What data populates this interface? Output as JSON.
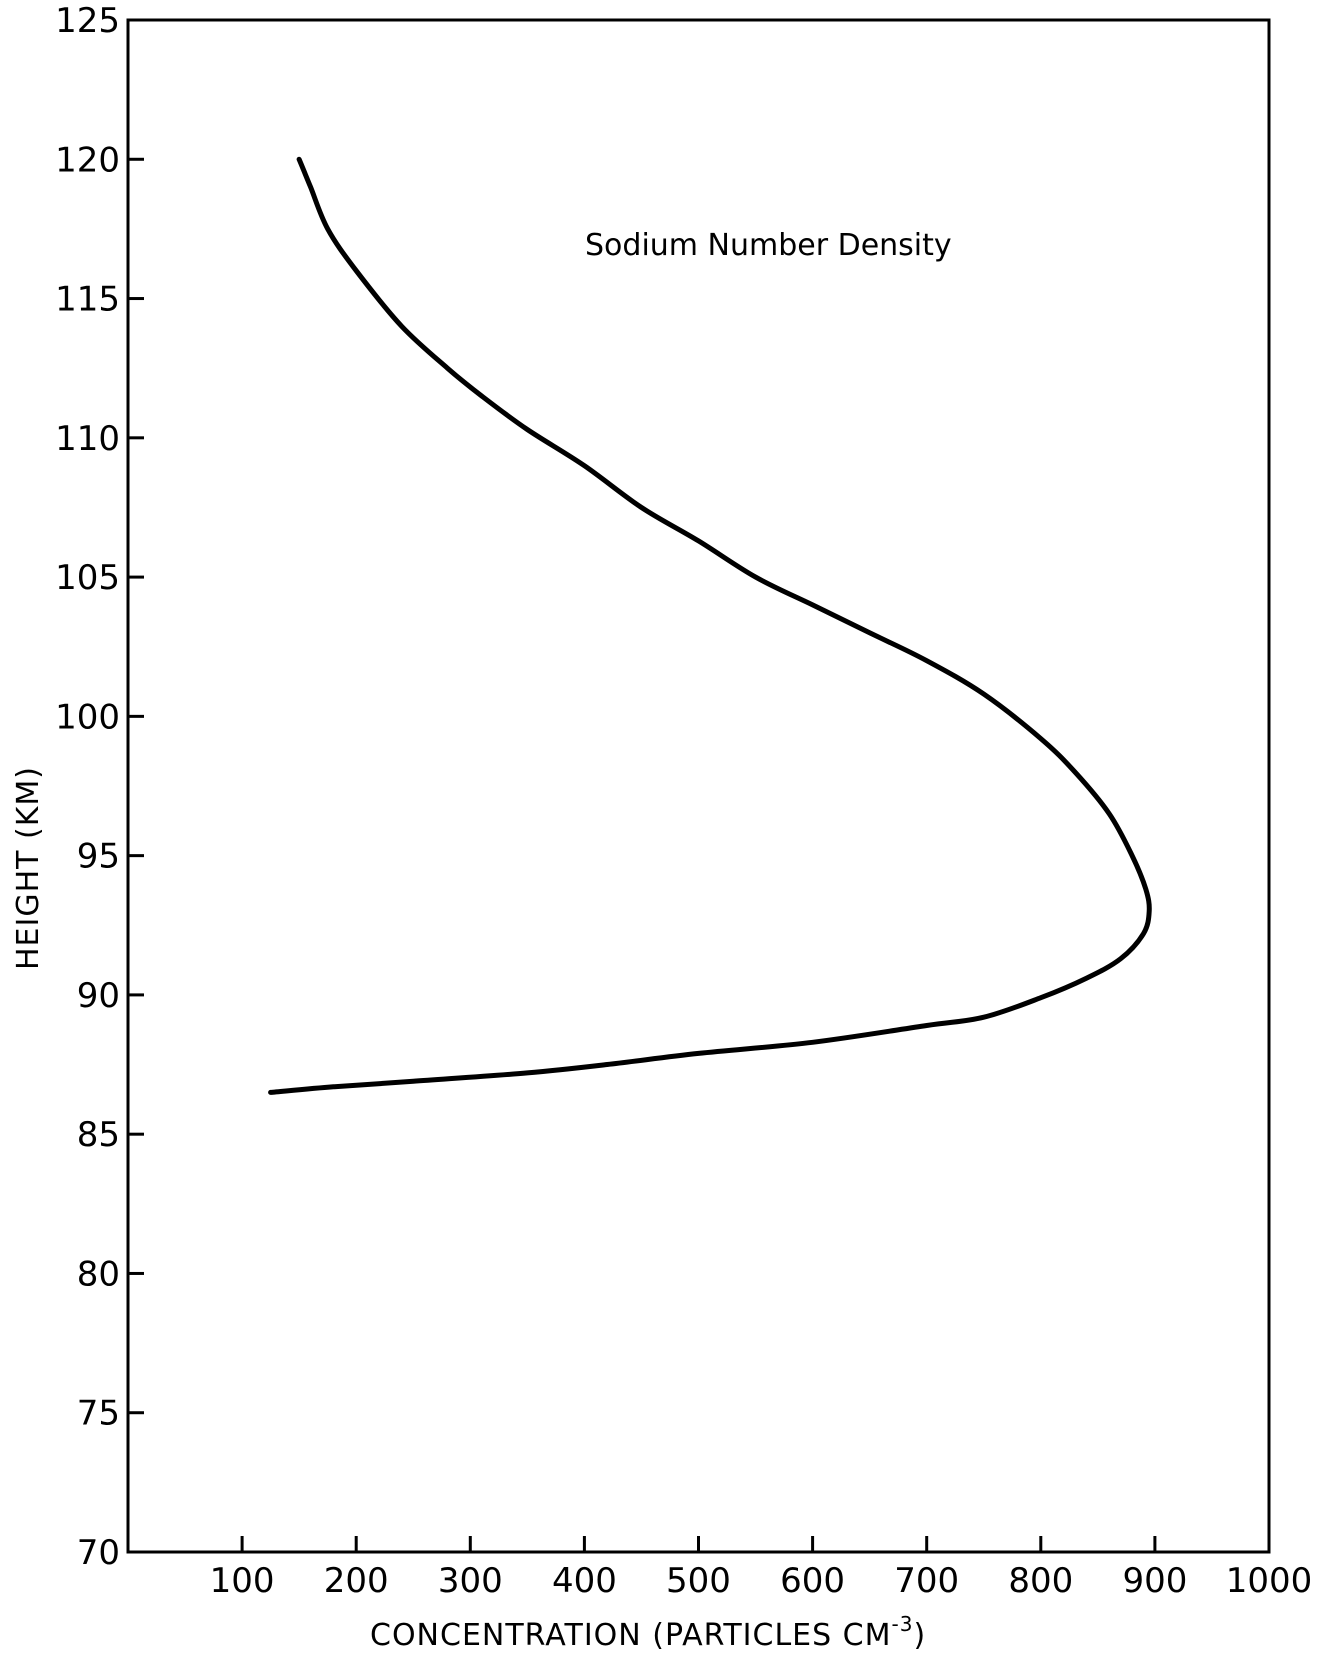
{
  "chart_data": {
    "type": "line",
    "title": "",
    "annotation": "Sodium Number Density",
    "xlabel_main": "CONCENTRATION  (PARTICLES  CM",
    "xlabel_sup": "-3",
    "xlabel_end": ")",
    "ylabel": "HEIGHT  (KM)",
    "xlim": [
      0,
      1000
    ],
    "ylim": [
      70,
      125
    ],
    "x_ticks": [
      100,
      200,
      300,
      400,
      500,
      600,
      700,
      800,
      900,
      1000
    ],
    "x_tick_labels": [
      "100",
      "200",
      "300",
      "400",
      "500",
      "600",
      "700",
      "800",
      "900",
      "1000"
    ],
    "y_ticks": [
      70,
      75,
      80,
      85,
      90,
      95,
      100,
      105,
      110,
      115,
      120,
      125
    ],
    "y_tick_labels": [
      "70",
      "75",
      "80",
      "85",
      "90",
      "95",
      "100",
      "105",
      "110",
      "115",
      "120",
      "125"
    ],
    "grid": false,
    "series": [
      {
        "points": [
          [
            150,
            120
          ],
          [
            160,
            119
          ],
          [
            175,
            117.5
          ],
          [
            200,
            116
          ],
          [
            240,
            114
          ],
          [
            280,
            112.5
          ],
          [
            310,
            111.5
          ],
          [
            350,
            110.3
          ],
          [
            400,
            109
          ],
          [
            450,
            107.5
          ],
          [
            500,
            106.3
          ],
          [
            550,
            105
          ],
          [
            600,
            104
          ],
          [
            650,
            103
          ],
          [
            700,
            102
          ],
          [
            750,
            100.8
          ],
          [
            800,
            99.2
          ],
          [
            830,
            98
          ],
          [
            860,
            96.5
          ],
          [
            880,
            95
          ],
          [
            892,
            93.8
          ],
          [
            895,
            93
          ],
          [
            890,
            92.2
          ],
          [
            870,
            91.3
          ],
          [
            840,
            90.6
          ],
          [
            800,
            89.9
          ],
          [
            750,
            89.2
          ],
          [
            700,
            88.9
          ],
          [
            600,
            88.3
          ],
          [
            500,
            87.9
          ],
          [
            420,
            87.5
          ],
          [
            350,
            87.2
          ],
          [
            250,
            86.9
          ],
          [
            180,
            86.7
          ],
          [
            125,
            86.5
          ]
        ]
      }
    ]
  }
}
